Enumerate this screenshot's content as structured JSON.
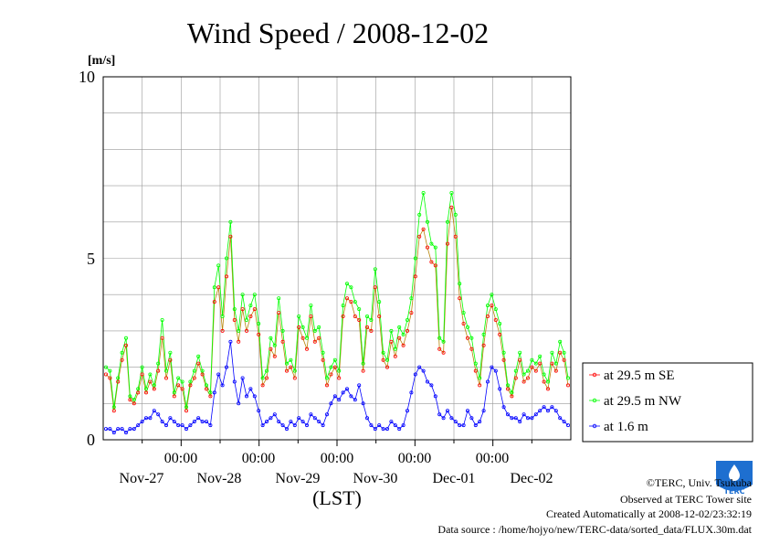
{
  "chart_data": {
    "type": "line",
    "title": "Wind Speed / 2008-12-02",
    "ylabel": "[m/s]",
    "xlabel": "(LST)",
    "ylim": [
      0,
      10
    ],
    "y_ticks": [
      "0",
      "5",
      "10"
    ],
    "x_ticks": [
      {
        "time": "00:00",
        "date": "Nov-28"
      },
      {
        "time": "00:00",
        "date": "Nov-29"
      },
      {
        "time": "00:00",
        "date": "Nov-30"
      },
      {
        "time": "00:00",
        "date": "Dec-01"
      },
      {
        "time": "00:00",
        "date": "Dec-02"
      }
    ],
    "x_start_label": "Nov-27",
    "x_range": [
      "2008-11-27 00:00",
      "2008-12-02 24:00"
    ],
    "grid": true,
    "legend_position": "right",
    "series": [
      {
        "name": "at 29.5 m SE",
        "color": "#ff0000",
        "values": [
          1.8,
          1.7,
          0.8,
          1.6,
          2.2,
          2.6,
          1.1,
          1.0,
          1.3,
          1.8,
          1.3,
          1.6,
          1.4,
          1.9,
          2.8,
          1.7,
          2.2,
          1.2,
          1.5,
          1.4,
          0.8,
          1.5,
          1.7,
          2.1,
          1.8,
          1.4,
          1.2,
          3.8,
          4.2,
          3.0,
          4.5,
          5.6,
          3.3,
          2.7,
          3.6,
          3.0,
          3.4,
          3.6,
          2.9,
          1.5,
          1.7,
          2.5,
          2.3,
          3.5,
          2.7,
          1.9,
          2.0,
          1.7,
          3.1,
          2.8,
          2.5,
          3.4,
          2.7,
          2.8,
          2.2,
          1.5,
          1.8,
          2.0,
          1.7,
          3.4,
          3.9,
          3.8,
          3.4,
          3.3,
          1.9,
          3.1,
          3.0,
          4.2,
          3.4,
          2.2,
          2.0,
          2.7,
          2.3,
          2.8,
          2.6,
          3.0,
          3.5,
          4.5,
          5.6,
          5.8,
          5.3,
          4.9,
          4.8,
          2.5,
          2.4,
          5.4,
          6.4,
          5.6,
          3.9,
          3.2,
          2.8,
          2.5,
          1.9,
          1.5,
          2.6,
          3.4,
          3.7,
          3.3,
          2.9,
          2.2,
          1.4,
          1.2,
          1.7,
          2.2,
          1.6,
          1.7,
          2.0,
          1.9,
          2.1,
          1.6,
          1.4,
          2.1,
          1.9,
          2.4,
          2.2,
          1.5
        ]
      },
      {
        "name": "at 29.5 m NW",
        "color": "#00ff00",
        "values": [
          2.0,
          1.9,
          0.9,
          1.7,
          2.4,
          2.8,
          1.2,
          1.1,
          1.4,
          2.0,
          1.4,
          1.8,
          1.5,
          2.1,
          3.3,
          1.9,
          2.4,
          1.3,
          1.7,
          1.6,
          0.9,
          1.6,
          1.9,
          2.3,
          1.9,
          1.5,
          1.3,
          4.2,
          4.8,
          3.4,
          5.0,
          6.0,
          3.6,
          3.0,
          4.0,
          3.3,
          3.7,
          4.0,
          3.2,
          1.7,
          1.9,
          2.8,
          2.6,
          3.9,
          3.0,
          2.1,
          2.2,
          1.9,
          3.4,
          3.1,
          2.8,
          3.7,
          3.0,
          3.1,
          2.4,
          1.7,
          2.0,
          2.2,
          1.9,
          3.7,
          4.3,
          4.2,
          3.8,
          3.6,
          2.1,
          3.4,
          3.3,
          4.7,
          3.8,
          2.4,
          2.2,
          3.0,
          2.5,
          3.1,
          2.9,
          3.3,
          3.9,
          5.0,
          6.2,
          6.8,
          6.0,
          5.4,
          5.3,
          2.8,
          2.7,
          6.0,
          6.8,
          6.2,
          4.3,
          3.5,
          3.1,
          2.8,
          2.1,
          1.7,
          2.9,
          3.7,
          4.0,
          3.6,
          3.2,
          2.4,
          1.5,
          1.3,
          1.9,
          2.4,
          1.8,
          1.9,
          2.2,
          2.1,
          2.3,
          1.8,
          1.6,
          2.4,
          2.1,
          2.7,
          2.4,
          1.7
        ]
      },
      {
        "name": "at 1.6 m",
        "color": "#0000ff",
        "values": [
          0.3,
          0.3,
          0.2,
          0.3,
          0.3,
          0.2,
          0.3,
          0.3,
          0.4,
          0.5,
          0.6,
          0.6,
          0.8,
          0.7,
          0.5,
          0.4,
          0.6,
          0.5,
          0.4,
          0.4,
          0.3,
          0.4,
          0.5,
          0.6,
          0.5,
          0.5,
          0.4,
          1.3,
          1.8,
          1.5,
          2.0,
          2.7,
          1.6,
          1.0,
          1.7,
          1.2,
          1.4,
          1.2,
          0.8,
          0.4,
          0.5,
          0.6,
          0.7,
          0.5,
          0.4,
          0.3,
          0.5,
          0.4,
          0.6,
          0.5,
          0.4,
          0.7,
          0.6,
          0.5,
          0.4,
          0.7,
          1.0,
          1.2,
          1.1,
          1.3,
          1.4,
          1.2,
          1.1,
          1.5,
          1.0,
          0.6,
          0.4,
          0.3,
          0.4,
          0.3,
          0.3,
          0.5,
          0.4,
          0.3,
          0.4,
          0.8,
          1.3,
          1.8,
          2.0,
          1.9,
          1.6,
          1.5,
          1.2,
          0.7,
          0.6,
          0.8,
          0.6,
          0.5,
          0.4,
          0.4,
          0.8,
          0.6,
          0.4,
          0.5,
          0.8,
          1.6,
          2.0,
          1.9,
          1.4,
          0.9,
          0.7,
          0.6,
          0.6,
          0.5,
          0.7,
          0.6,
          0.6,
          0.7,
          0.8,
          0.9,
          0.8,
          0.9,
          0.8,
          0.6,
          0.5,
          0.4
        ]
      }
    ]
  },
  "footer": {
    "copyright": "©TERC, Univ. Tsukuba",
    "observed": "Observed at TERC Tower site",
    "created": "Created Automatically at 2008-12-02/23:32:19",
    "source": "Data source : /home/hojyo/new/TERC-data/sorted_data/FLUX.30m.dat",
    "logo_text": "TERC"
  }
}
